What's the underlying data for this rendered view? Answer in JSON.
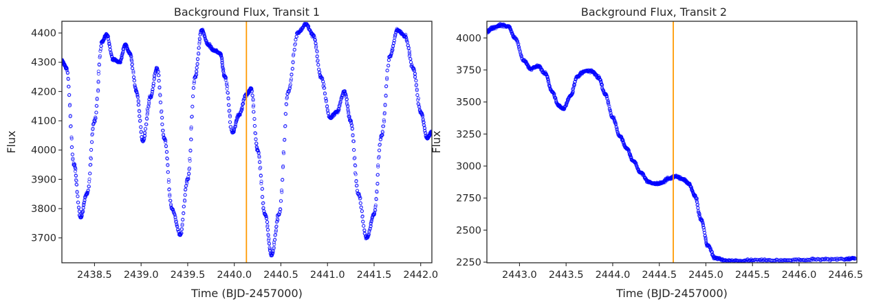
{
  "chart_data": [
    {
      "type": "scatter",
      "title": "Background Flux, Transit 1",
      "xlabel": "Time (BJD-2457000)",
      "ylabel": "Flux",
      "xlim": [
        2438.15,
        2442.12
      ],
      "ylim": [
        3615,
        4440
      ],
      "xticks": [
        2438.5,
        2439.0,
        2439.5,
        2440.0,
        2440.5,
        2441.0,
        2441.5,
        2442.0
      ],
      "xtick_labels": [
        "2438.5",
        "2439.0",
        "2439.5",
        "2440.0",
        "2440.5",
        "2441.0",
        "2441.5",
        "2442.0"
      ],
      "yticks": [
        3700,
        3800,
        3900,
        4000,
        4100,
        4200,
        4300,
        4400
      ],
      "ytick_labels": [
        "3700",
        "3800",
        "3900",
        "4000",
        "4100",
        "4200",
        "4300",
        "4400"
      ],
      "grid": false,
      "marker_color": "#0000ff",
      "vline": {
        "x": 2440.13,
        "color": "#ff9900"
      },
      "series": [
        {
          "x": [
            2438.15,
            2438.2,
            2438.28,
            2438.35,
            2438.42,
            2438.5,
            2438.58,
            2438.63,
            2438.7,
            2438.77,
            2438.83,
            2438.88,
            2438.95,
            2439.02,
            2439.1,
            2439.17,
            2439.25,
            2439.33,
            2439.42,
            2439.5,
            2439.58,
            2439.65,
            2439.72,
            2439.78,
            2439.85,
            2439.9,
            2439.98,
            2440.05,
            2440.13,
            2440.18,
            2440.25,
            2440.33,
            2440.4,
            2440.48,
            2440.58,
            2440.68,
            2440.77,
            2440.85,
            2440.93,
            2441.03,
            2441.1,
            2441.18,
            2441.25,
            2441.33,
            2441.42,
            2441.5,
            2441.58,
            2441.67,
            2441.75,
            2441.83,
            2441.92,
            2442.0,
            2442.07,
            2442.12
          ],
          "y": [
            4305,
            4280,
            3950,
            3770,
            3850,
            4100,
            4370,
            4395,
            4310,
            4300,
            4360,
            4330,
            4200,
            4030,
            4180,
            4280,
            4040,
            3800,
            3710,
            3900,
            4250,
            4410,
            4360,
            4340,
            4330,
            4250,
            4060,
            4120,
            4190,
            4210,
            4000,
            3780,
            3640,
            3780,
            4200,
            4400,
            4430,
            4390,
            4250,
            4110,
            4130,
            4200,
            4100,
            3850,
            3700,
            3780,
            4050,
            4320,
            4410,
            4390,
            4280,
            4130,
            4040,
            4060
          ]
        }
      ]
    },
    {
      "type": "scatter",
      "title": "Background Flux, Transit 2",
      "xlabel": "Time (BJD-2457000)",
      "ylabel": "Flux",
      "xlim": [
        2442.65,
        2446.62
      ],
      "ylim": [
        2245,
        4130
      ],
      "xticks": [
        2443.0,
        2443.5,
        2444.0,
        2444.5,
        2445.0,
        2445.5,
        2446.0,
        2446.5
      ],
      "xtick_labels": [
        "2443.0",
        "2443.5",
        "2444.0",
        "2444.5",
        "2445.0",
        "2445.5",
        "2446.0",
        "2446.5"
      ],
      "yticks": [
        2250,
        2500,
        2750,
        3000,
        3250,
        3500,
        3750,
        4000
      ],
      "ytick_labels": [
        "2250",
        "2500",
        "2750",
        "3000",
        "3250",
        "3500",
        "3750",
        "4000"
      ],
      "grid": false,
      "marker_color": "#0000ff",
      "vline": {
        "x": 2444.65,
        "color": "#ff9900"
      },
      "series": [
        {
          "x": [
            2442.65,
            2442.72,
            2442.8,
            2442.88,
            2442.95,
            2443.05,
            2443.12,
            2443.2,
            2443.28,
            2443.35,
            2443.42,
            2443.47,
            2443.55,
            2443.62,
            2443.7,
            2443.78,
            2443.85,
            2443.92,
            2444.0,
            2444.08,
            2444.15,
            2444.22,
            2444.3,
            2444.38,
            2444.45,
            2444.52,
            2444.6,
            2444.67,
            2444.75,
            2444.82,
            2444.88,
            2444.95,
            2445.02,
            2445.1,
            2445.2,
            2445.35,
            2445.5,
            2445.7,
            2445.9,
            2446.1,
            2446.3,
            2446.5,
            2446.6
          ],
          "y": [
            4050,
            4080,
            4100,
            4090,
            4000,
            3820,
            3760,
            3780,
            3720,
            3580,
            3470,
            3450,
            3550,
            3700,
            3740,
            3740,
            3690,
            3560,
            3380,
            3230,
            3140,
            3040,
            2950,
            2880,
            2860,
            2870,
            2900,
            2920,
            2900,
            2860,
            2770,
            2580,
            2380,
            2280,
            2265,
            2260,
            2265,
            2262,
            2265,
            2268,
            2272,
            2275,
            2278
          ]
        }
      ]
    }
  ]
}
